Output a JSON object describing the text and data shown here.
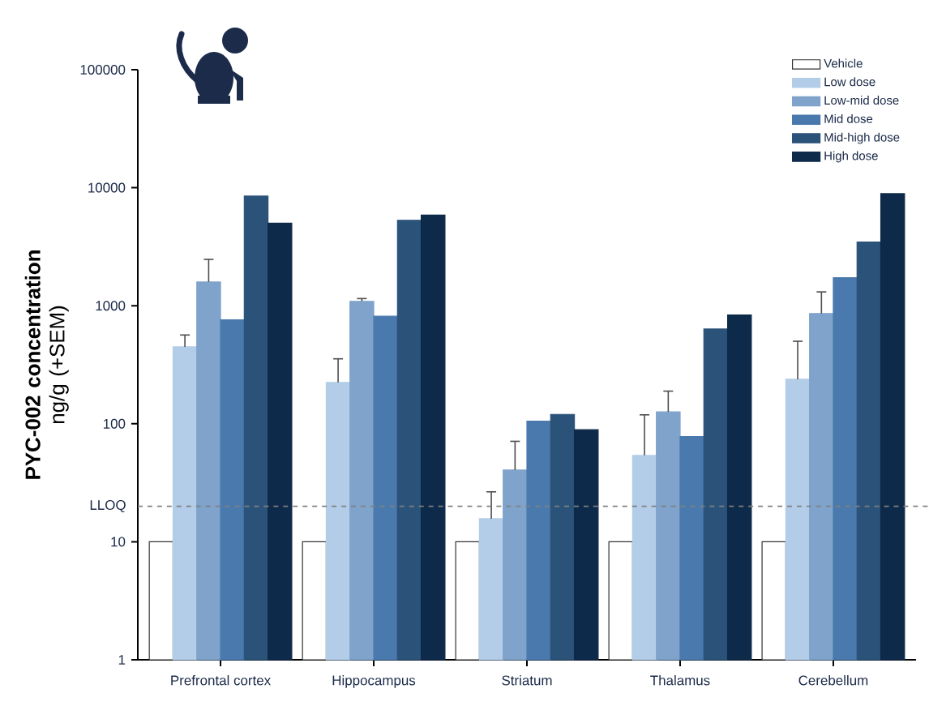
{
  "chart_data": {
    "type": "bar",
    "ylabel": "**PYC-002 concentration** ng/g (+SEM)",
    "categories": [
      "Prefrontal cortex",
      "Hippocampus",
      "Striatum",
      "Thalamus",
      "Cerebellum"
    ],
    "series": [
      {
        "name": "Vehicle",
        "color": "#ffffff",
        "values": [
          10,
          10,
          10,
          10,
          10
        ]
      },
      {
        "name": "Low dose",
        "color": "#b3cde9",
        "values": [
          448,
          224,
          15.7,
          54,
          238
        ],
        "errors": [
          [
            448,
            565
          ],
          [
            224,
            355
          ],
          [
            15.7,
            26.5
          ],
          [
            54,
            119
          ],
          [
            238,
            500
          ]
        ]
      },
      {
        "name": "Low-mid dose",
        "color": "#7fa3cb",
        "values": [
          1590,
          1090,
          40.5,
          126,
          860
        ],
        "errors": [
          [
            1590,
            2470
          ],
          [
            1090,
            1150
          ],
          [
            40.5,
            71
          ],
          [
            126,
            189
          ],
          [
            860,
            1310
          ]
        ]
      },
      {
        "name": "Mid dose",
        "color": "#4a7aad",
        "values": [
          760,
          815,
          105,
          78,
          1730
        ]
      },
      {
        "name": "Mid-high dose",
        "color": "#2b5279",
        "values": [
          8500,
          5300,
          120,
          635,
          3470
        ]
      },
      {
        "name": "High dose",
        "color": "#0e2a4a",
        "values": [
          5000,
          5870,
          89,
          835,
          8900
        ]
      }
    ],
    "ylim": [
      1,
      100000
    ],
    "yticks": [
      1,
      10,
      100,
      1000,
      10000,
      100000
    ],
    "log": true,
    "legend": "top right",
    "ref_lines": [
      {
        "axis": "y",
        "value": 20,
        "label": "LLOQ",
        "color": "#808080",
        "line_style": "dashed"
      }
    ]
  }
}
